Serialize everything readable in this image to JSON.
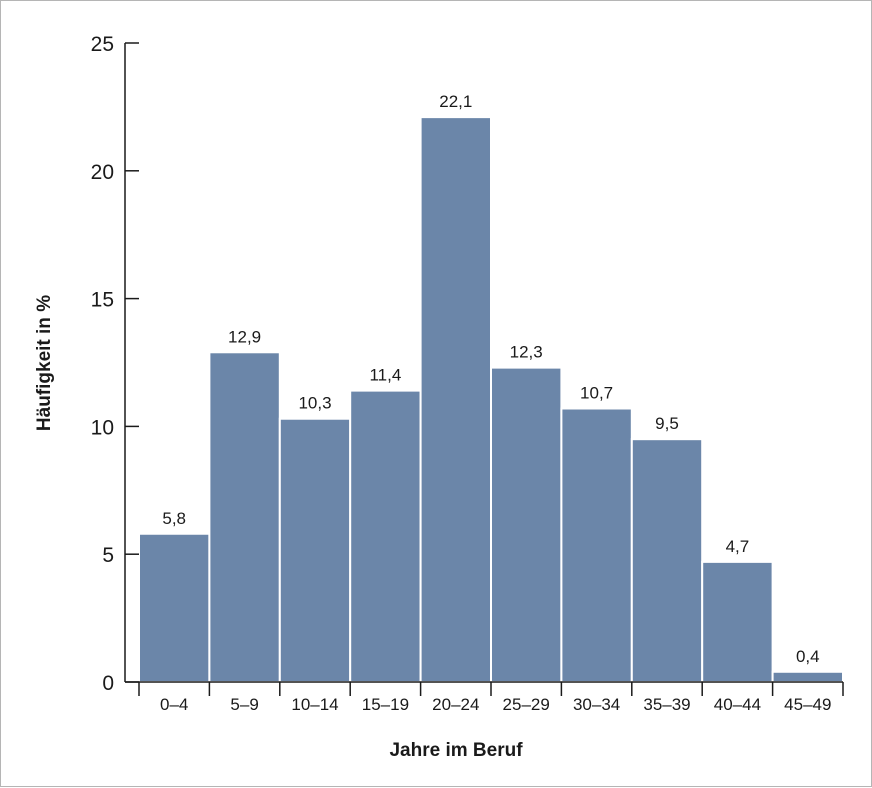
{
  "chart_data": {
    "type": "bar",
    "xlabel": "Jahre im Beruf",
    "ylabel": "Häufigkeit in %",
    "ylim": [
      0,
      25
    ],
    "yticks": [
      0,
      5,
      10,
      15,
      20,
      25
    ],
    "grid": false,
    "categories": [
      "0–4",
      "5–9",
      "10–14",
      "15–19",
      "20–24",
      "25–29",
      "30–34",
      "35–39",
      "40–44",
      "45–49"
    ],
    "values": [
      5.8,
      12.9,
      10.3,
      11.4,
      22.1,
      12.3,
      10.7,
      9.5,
      4.7,
      0.4
    ],
    "value_labels": [
      "5,8",
      "12,9",
      "10,3",
      "11,4",
      "22,1",
      "12,3",
      "10,7",
      "9,5",
      "4,7",
      "0,4"
    ],
    "colors": {
      "bar": "#6b86a9",
      "bar_border": "#ffffff",
      "axis": "#1a1a1a"
    }
  }
}
